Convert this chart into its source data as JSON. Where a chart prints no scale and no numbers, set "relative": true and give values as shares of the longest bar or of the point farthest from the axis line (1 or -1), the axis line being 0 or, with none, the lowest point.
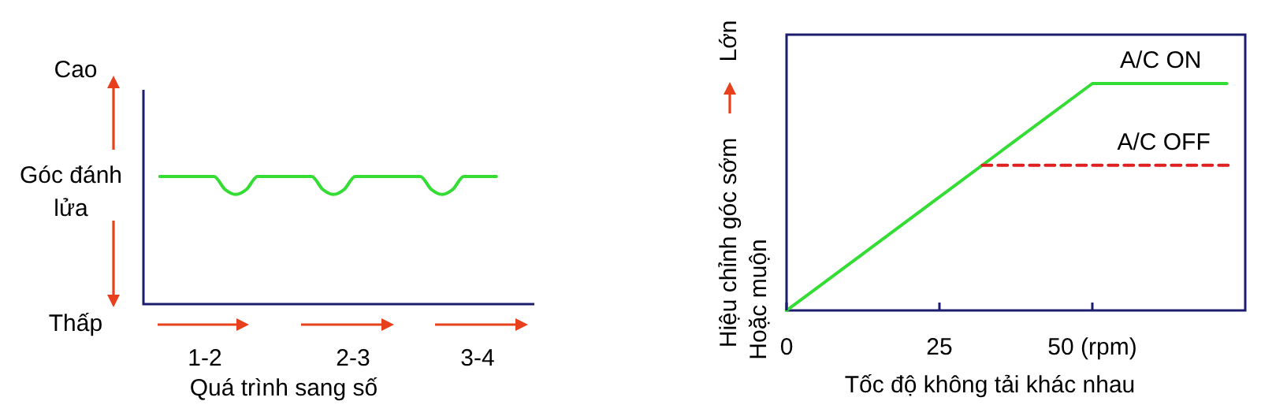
{
  "chart_data": [
    {
      "type": "line",
      "relative": true,
      "xlabel": "Quá trình sang số",
      "ylabel": "Góc đánh lửa",
      "annotations": [
        "Cao",
        "Thấp",
        "1-2",
        "2-3",
        "3-4"
      ],
      "categories": [
        null,
        null,
        null,
        null,
        null,
        null,
        null,
        null,
        null,
        null,
        null,
        null,
        null,
        null,
        null,
        null,
        null,
        null,
        null,
        null,
        null,
        null,
        null,
        null,
        null,
        null,
        null,
        null,
        null,
        null,
        null,
        null,
        null,
        null,
        null,
        null
      ],
      "values": [
        null,
        1,
        1,
        1,
        1,
        1,
        1,
        0.9,
        0.86,
        0.9,
        1,
        1,
        1,
        1,
        1,
        1,
        0.9,
        0.86,
        0.9,
        1,
        1,
        1,
        1,
        1,
        1,
        1,
        0.9,
        0.86,
        0.9,
        1,
        1,
        1,
        1,
        null,
        null,
        null
      ],
      "color": "#33dd33"
    },
    {
      "type": "line",
      "relative": true,
      "xlabel": "Tốc độ không tải khác nhau",
      "ylabel": "Hiệu chỉnh góc sớm",
      "annotations": [
        "Lớn",
        "Hoặc muộn"
      ],
      "xlim": [
        0,
        75
      ],
      "xticks": [
        0,
        25,
        {
          "value": 50,
          "label": "50 (rpm)"
        }
      ],
      "series": [
        {
          "name": "A/C ON",
          "color": "#33dd33",
          "x": [
            0,
            50,
            72
          ],
          "values": [
            0,
            1,
            1
          ],
          "line_style": "solid"
        },
        {
          "name": "A/C OFF",
          "color": "#e02020",
          "x": [
            32,
            72.5
          ],
          "values": [
            0.64,
            0.64
          ],
          "line_style": "dashed"
        }
      ]
    }
  ]
}
